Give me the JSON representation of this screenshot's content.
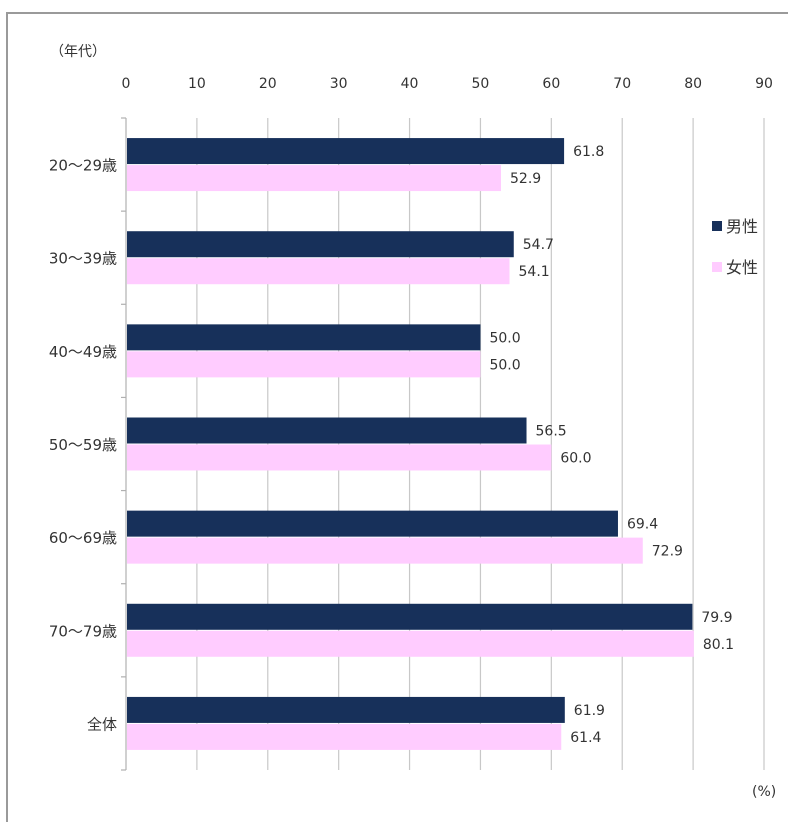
{
  "chart_data": {
    "type": "bar",
    "orientation": "horizontal",
    "categories": [
      "20～29歳",
      "30～39歳",
      "40～49歳",
      "50～59歳",
      "60～69歳",
      "70～79歳",
      "全体"
    ],
    "series": [
      {
        "name": "男性",
        "color": "#17305a",
        "values": [
          61.8,
          54.7,
          50.0,
          56.5,
          69.4,
          79.9,
          61.9
        ]
      },
      {
        "name": "女性",
        "color": "#ffccff",
        "values": [
          52.9,
          54.1,
          50.0,
          60.0,
          72.9,
          80.1,
          61.4
        ]
      }
    ],
    "xlim": [
      0,
      90
    ],
    "xticks": [
      0,
      10,
      20,
      30,
      40,
      50,
      60,
      70,
      80,
      90
    ],
    "x_unit_label": "(%)",
    "y_axis_title": "（年代）",
    "grid": "vertical",
    "axis_position": "top",
    "legend_position": "right",
    "label_decimals": 1
  }
}
